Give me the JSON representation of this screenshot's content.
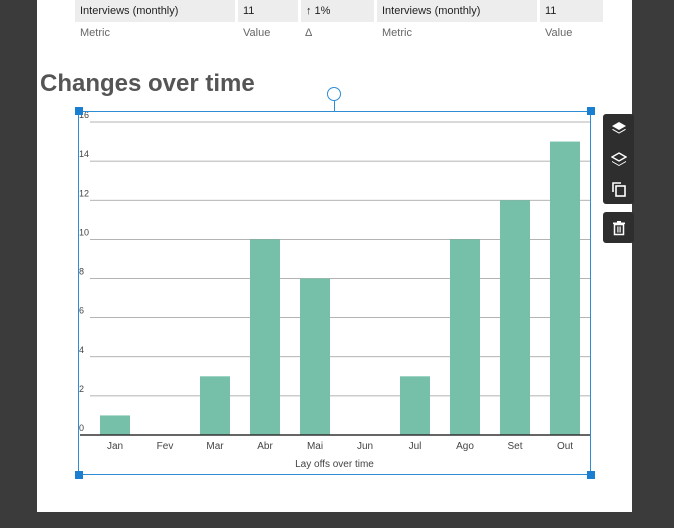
{
  "metrics": {
    "row": [
      {
        "label": "Interviews (monthly)",
        "value": "11",
        "delta": "↑ 1%"
      },
      {
        "label": "Interviews (monthly)",
        "value": "11"
      }
    ],
    "headers": {
      "metric": "Metric",
      "value": "Value",
      "delta": "Δ"
    }
  },
  "section": {
    "title": "Changes over time"
  },
  "toolbar": {
    "icons": [
      "bring-forward-icon",
      "send-backward-icon",
      "duplicate-icon",
      "delete-icon"
    ]
  },
  "colors": {
    "bar": "#76c0aa",
    "selection": "#2d8cd4",
    "toolbar": "#2e2e2e"
  },
  "chart_data": {
    "type": "bar",
    "title": "",
    "xlabel": "Lay offs over time",
    "ylabel": "",
    "categories": [
      "Jan",
      "Fev",
      "Mar",
      "Abr",
      "Mai",
      "Jun",
      "Jul",
      "Ago",
      "Set",
      "Out"
    ],
    "values": [
      1,
      0,
      3,
      10,
      8,
      0,
      3,
      10,
      12,
      15
    ],
    "ylim": [
      0,
      16
    ],
    "yticks": [
      0,
      2,
      4,
      6,
      8,
      10,
      12,
      14,
      16
    ],
    "grid": true
  }
}
